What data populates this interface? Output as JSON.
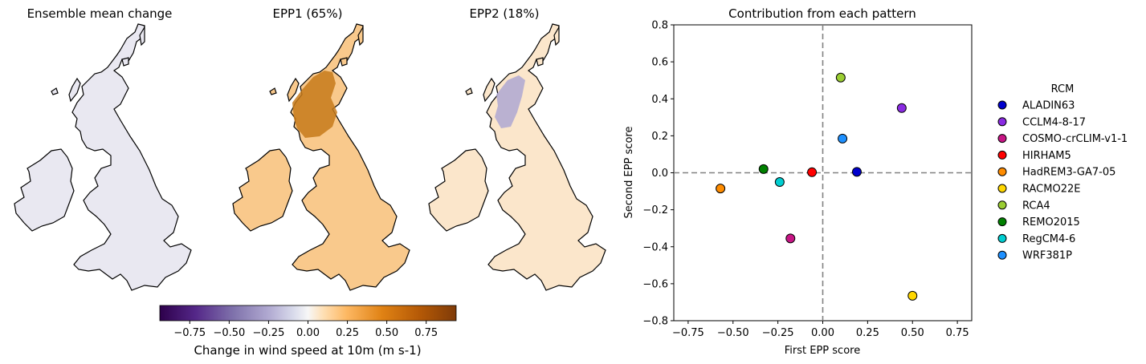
{
  "maps": {
    "titles": [
      "Ensemble mean change",
      "EPP1 (65%)",
      "EPP2 (18%)"
    ],
    "colorbar": {
      "label": "Change in wind speed at 10m (m s-1)",
      "colormap": "PuOr_r",
      "range": [
        -0.94,
        0.94
      ],
      "ticks": [
        "−0.75",
        "−0.50",
        "−0.25",
        "0.00",
        "0.25",
        "0.50",
        "0.75"
      ],
      "tick_values": [
        -0.75,
        -0.5,
        -0.25,
        0,
        0.25,
        0.5,
        0.75
      ]
    },
    "fills": [
      "#e9e8f1",
      "#f9c98c",
      "#fbe6cb"
    ]
  },
  "chart_data": {
    "type": "scatter",
    "title": "Contribution from each pattern",
    "xlabel": "First EPP score",
    "ylabel": "Second EPP score",
    "xlim": [
      -0.83,
      0.83
    ],
    "ylim": [
      -0.8,
      0.8
    ],
    "xticks": [
      -0.75,
      -0.5,
      -0.25,
      0,
      0.25,
      0.5,
      0.75
    ],
    "xtick_labels": [
      "−0.75",
      "−0.50",
      "−0.25",
      "0.00",
      "0.25",
      "0.50",
      "0.75"
    ],
    "yticks": [
      -0.8,
      -0.6,
      -0.4,
      -0.2,
      0,
      0.2,
      0.4,
      0.6,
      0.8
    ],
    "ytick_labels": [
      "−0.8",
      "−0.6",
      "−0.4",
      "−0.2",
      "0.0",
      "0.2",
      "0.4",
      "0.6",
      "0.8"
    ],
    "reference_lines": {
      "x": 0,
      "y": 0,
      "style": "dashed",
      "color": "#808080"
    },
    "grid": false,
    "legend": {
      "title": "RCM",
      "placement": "outside-right"
    },
    "series": [
      {
        "name": "ALADIN63",
        "color": "#0000cd",
        "x": 0.19,
        "y": 0.005
      },
      {
        "name": "CCLM4-8-17",
        "color": "#8a2be2",
        "x": 0.44,
        "y": 0.35
      },
      {
        "name": "COSMO-crCLIM-v1-1",
        "color": "#c71585",
        "x": -0.18,
        "y": -0.355
      },
      {
        "name": "HIRHAM5",
        "color": "#ff0000",
        "x": -0.06,
        "y": 0.003
      },
      {
        "name": "HadREM3-GA7-05",
        "color": "#ff8c00",
        "x": -0.57,
        "y": -0.085
      },
      {
        "name": "RACMO22E",
        "color": "#ffd700",
        "x": 0.5,
        "y": -0.665
      },
      {
        "name": "RCA4",
        "color": "#9acd32",
        "x": 0.1,
        "y": 0.515
      },
      {
        "name": "REMO2015",
        "color": "#008000",
        "x": -0.33,
        "y": 0.02
      },
      {
        "name": "RegCM4-6",
        "color": "#00ced1",
        "x": -0.24,
        "y": -0.05
      },
      {
        "name": "WRF381P",
        "color": "#1e90ff",
        "x": 0.11,
        "y": 0.185
      }
    ]
  }
}
